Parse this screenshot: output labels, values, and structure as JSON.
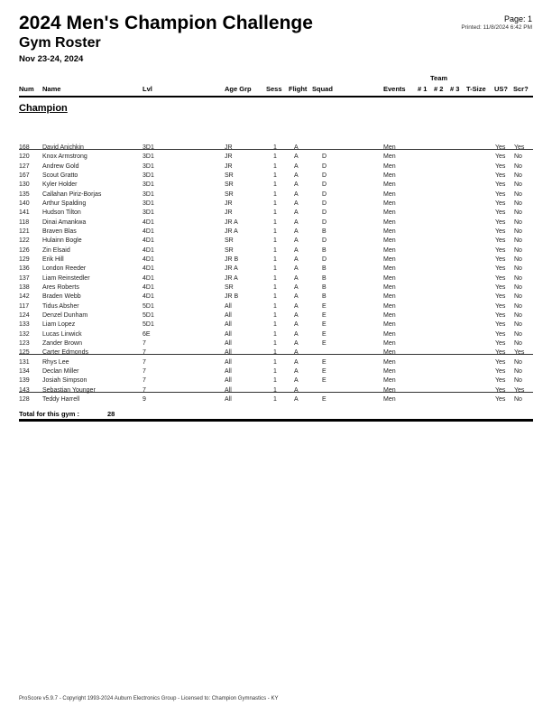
{
  "header": {
    "title": "2024 Men's Champion Challenge",
    "subtitle": "Gym Roster",
    "date": "Nov 23-24, 2024",
    "page": "Page: 1",
    "printed": "Printed: 11/8/2024 6:42 PM"
  },
  "columns": {
    "team_group": "Team",
    "num": "Num",
    "name": "Name",
    "lvl": "Lvl",
    "age_grp": "Age Grp",
    "sess": "Sess",
    "flight": "Flight",
    "squad": "Squad",
    "events": "Events",
    "t1": "# 1",
    "t2": "# 2",
    "t3": "# 3",
    "tsize": "T-Size",
    "us": "US?",
    "scr": "Scr?"
  },
  "section": "Champion",
  "rows": [
    {
      "num": "168",
      "name": "David Anichkin",
      "lvl": "3D1",
      "age": "JR",
      "sess": "1",
      "flight": "A",
      "squad": "",
      "events": "Men",
      "us": "Yes",
      "scr": "Yes",
      "scratched": true
    },
    {
      "num": "120",
      "name": "Knox Armstrong",
      "lvl": "3D1",
      "age": "JR",
      "sess": "1",
      "flight": "A",
      "squad": "D",
      "events": "Men",
      "us": "Yes",
      "scr": "No",
      "scratched": false
    },
    {
      "num": "127",
      "name": "Andrew Gold",
      "lvl": "3D1",
      "age": "JR",
      "sess": "1",
      "flight": "A",
      "squad": "D",
      "events": "Men",
      "us": "Yes",
      "scr": "No",
      "scratched": false
    },
    {
      "num": "167",
      "name": "Scout Gratto",
      "lvl": "3D1",
      "age": "SR",
      "sess": "1",
      "flight": "A",
      "squad": "D",
      "events": "Men",
      "us": "Yes",
      "scr": "No",
      "scratched": false
    },
    {
      "num": "130",
      "name": "Kyler Holder",
      "lvl": "3D1",
      "age": "SR",
      "sess": "1",
      "flight": "A",
      "squad": "D",
      "events": "Men",
      "us": "Yes",
      "scr": "No",
      "scratched": false
    },
    {
      "num": "135",
      "name": "Callahan Piriz-Borjas",
      "lvl": "3D1",
      "age": "SR",
      "sess": "1",
      "flight": "A",
      "squad": "D",
      "events": "Men",
      "us": "Yes",
      "scr": "No",
      "scratched": false
    },
    {
      "num": "140",
      "name": "Arthur Spalding",
      "lvl": "3D1",
      "age": "JR",
      "sess": "1",
      "flight": "A",
      "squad": "D",
      "events": "Men",
      "us": "Yes",
      "scr": "No",
      "scratched": false
    },
    {
      "num": "141",
      "name": "Hudson Tilton",
      "lvl": "3D1",
      "age": "JR",
      "sess": "1",
      "flight": "A",
      "squad": "D",
      "events": "Men",
      "us": "Yes",
      "scr": "No",
      "scratched": false
    },
    {
      "num": "118",
      "name": "Dinai Amankwa",
      "lvl": "4D1",
      "age": "JR A",
      "sess": "1",
      "flight": "A",
      "squad": "D",
      "events": "Men",
      "us": "Yes",
      "scr": "No",
      "scratched": false
    },
    {
      "num": "121",
      "name": "Braven Blas",
      "lvl": "4D1",
      "age": "JR A",
      "sess": "1",
      "flight": "A",
      "squad": "B",
      "events": "Men",
      "us": "Yes",
      "scr": "No",
      "scratched": false
    },
    {
      "num": "122",
      "name": "Hulainn Bogle",
      "lvl": "4D1",
      "age": "SR",
      "sess": "1",
      "flight": "A",
      "squad": "D",
      "events": "Men",
      "us": "Yes",
      "scr": "No",
      "scratched": false
    },
    {
      "num": "126",
      "name": "Zin Elsaid",
      "lvl": "4D1",
      "age": "SR",
      "sess": "1",
      "flight": "A",
      "squad": "B",
      "events": "Men",
      "us": "Yes",
      "scr": "No",
      "scratched": false
    },
    {
      "num": "129",
      "name": "Erik Hill",
      "lvl": "4D1",
      "age": "JR B",
      "sess": "1",
      "flight": "A",
      "squad": "D",
      "events": "Men",
      "us": "Yes",
      "scr": "No",
      "scratched": false
    },
    {
      "num": "136",
      "name": "London Reeder",
      "lvl": "4D1",
      "age": "JR A",
      "sess": "1",
      "flight": "A",
      "squad": "B",
      "events": "Men",
      "us": "Yes",
      "scr": "No",
      "scratched": false
    },
    {
      "num": "137",
      "name": "Liam Reinstedler",
      "lvl": "4D1",
      "age": "JR A",
      "sess": "1",
      "flight": "A",
      "squad": "B",
      "events": "Men",
      "us": "Yes",
      "scr": "No",
      "scratched": false
    },
    {
      "num": "138",
      "name": "Ares Roberts",
      "lvl": "4D1",
      "age": "SR",
      "sess": "1",
      "flight": "A",
      "squad": "B",
      "events": "Men",
      "us": "Yes",
      "scr": "No",
      "scratched": false
    },
    {
      "num": "142",
      "name": "Braden Webb",
      "lvl": "4D1",
      "age": "JR B",
      "sess": "1",
      "flight": "A",
      "squad": "B",
      "events": "Men",
      "us": "Yes",
      "scr": "No",
      "scratched": false
    },
    {
      "num": "117",
      "name": "Tidus Absher",
      "lvl": "5D1",
      "age": "All",
      "sess": "1",
      "flight": "A",
      "squad": "E",
      "events": "Men",
      "us": "Yes",
      "scr": "No",
      "scratched": false
    },
    {
      "num": "124",
      "name": "Denzel Dunham",
      "lvl": "5D1",
      "age": "All",
      "sess": "1",
      "flight": "A",
      "squad": "E",
      "events": "Men",
      "us": "Yes",
      "scr": "No",
      "scratched": false
    },
    {
      "num": "133",
      "name": "Liam Lopez",
      "lvl": "5D1",
      "age": "All",
      "sess": "1",
      "flight": "A",
      "squad": "E",
      "events": "Men",
      "us": "Yes",
      "scr": "No",
      "scratched": false
    },
    {
      "num": "132",
      "name": "Lucas Linwick",
      "lvl": "6E",
      "age": "All",
      "sess": "1",
      "flight": "A",
      "squad": "E",
      "events": "Men",
      "us": "Yes",
      "scr": "No",
      "scratched": false
    },
    {
      "num": "123",
      "name": "Zander Brown",
      "lvl": "7",
      "age": "All",
      "sess": "1",
      "flight": "A",
      "squad": "E",
      "events": "Men",
      "us": "Yes",
      "scr": "No",
      "scratched": false
    },
    {
      "num": "125",
      "name": "Carter Edmonds",
      "lvl": "7",
      "age": "All",
      "sess": "1",
      "flight": "A",
      "squad": "",
      "events": "Men",
      "us": "Yes",
      "scr": "Yes",
      "scratched": true
    },
    {
      "num": "131",
      "name": "Rhys Lee",
      "lvl": "7",
      "age": "All",
      "sess": "1",
      "flight": "A",
      "squad": "E",
      "events": "Men",
      "us": "Yes",
      "scr": "No",
      "scratched": false
    },
    {
      "num": "134",
      "name": "Declan Miller",
      "lvl": "7",
      "age": "All",
      "sess": "1",
      "flight": "A",
      "squad": "E",
      "events": "Men",
      "us": "Yes",
      "scr": "No",
      "scratched": false
    },
    {
      "num": "139",
      "name": "Josiah Simpson",
      "lvl": "7",
      "age": "All",
      "sess": "1",
      "flight": "A",
      "squad": "E",
      "events": "Men",
      "us": "Yes",
      "scr": "No",
      "scratched": false
    },
    {
      "num": "143",
      "name": "Sebastian Younger",
      "lvl": "7",
      "age": "All",
      "sess": "1",
      "flight": "A",
      "squad": "",
      "events": "Men",
      "us": "Yes",
      "scr": "Yes",
      "scratched": true
    },
    {
      "num": "128",
      "name": "Teddy Harrell",
      "lvl": "9",
      "age": "All",
      "sess": "1",
      "flight": "A",
      "squad": "E",
      "events": "Men",
      "us": "Yes",
      "scr": "No",
      "scratched": false
    }
  ],
  "total": {
    "label": "Total for this gym :",
    "value": "28"
  },
  "footer": "ProScore v5.9.7 - Copyright 1993-2024 Auburn Electronics Group - Licensed to: Champion Gymnastics - KY"
}
